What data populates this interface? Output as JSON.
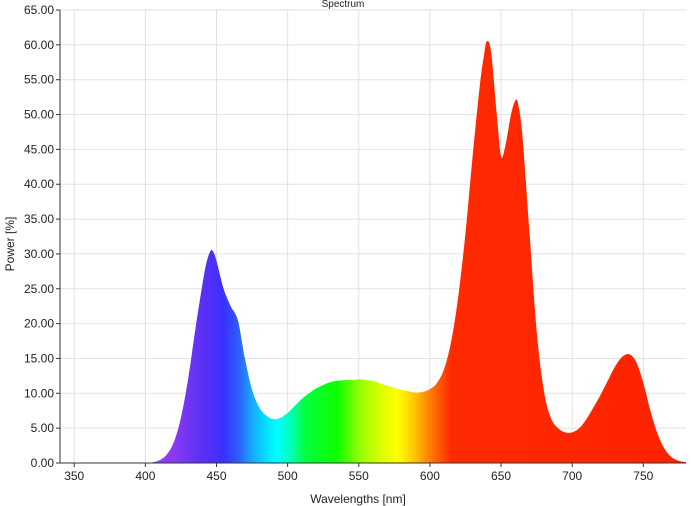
{
  "chart_data": {
    "type": "area",
    "title": "Spectrum",
    "xlabel": "Wavelengths [nm]",
    "ylabel": "Power [%]",
    "xlim": [
      340,
      780
    ],
    "ylim": [
      0,
      65
    ],
    "grid": true,
    "legend": "none",
    "x_ticks": [
      "350",
      "400",
      "450",
      "500",
      "550",
      "600",
      "650",
      "700",
      "750"
    ],
    "x_tick_values": [
      350,
      400,
      450,
      500,
      550,
      600,
      650,
      700,
      750
    ],
    "y_ticks": [
      "0.00",
      "5.00",
      "10.00",
      "15.00",
      "20.00",
      "25.00",
      "30.00",
      "35.00",
      "40.00",
      "45.00",
      "50.00",
      "55.00",
      "60.00",
      "65.00"
    ],
    "y_tick_values": [
      0,
      5,
      10,
      15,
      20,
      25,
      30,
      35,
      40,
      45,
      50,
      55,
      60,
      65
    ],
    "series": [
      {
        "x": [
          350,
          400,
          405,
          410,
          415,
          420,
          425,
          430,
          435,
          440,
          443,
          446,
          448,
          450,
          455,
          460,
          465,
          470,
          475,
          480,
          485,
          490,
          495,
          500,
          505,
          510,
          515,
          520,
          525,
          530,
          535,
          540,
          545,
          550,
          555,
          560,
          565,
          570,
          575,
          580,
          585,
          590,
          595,
          600,
          605,
          610,
          615,
          620,
          625,
          630,
          635,
          638,
          640,
          643,
          647,
          650,
          653,
          657,
          660,
          662,
          665,
          670,
          675,
          680,
          685,
          690,
          695,
          700,
          705,
          710,
          715,
          720,
          725,
          730,
          735,
          740,
          745,
          750,
          755,
          760,
          765,
          770,
          775,
          780
        ],
        "y": [
          0,
          0,
          0.1,
          0.4,
          1.2,
          3.0,
          6.5,
          12.0,
          19.0,
          25.5,
          28.8,
          30.5,
          30.2,
          29.0,
          25.0,
          22.5,
          20.5,
          15.0,
          10.5,
          8.0,
          6.8,
          6.3,
          6.5,
          7.2,
          8.2,
          9.2,
          10.0,
          10.7,
          11.2,
          11.6,
          11.8,
          11.9,
          11.9,
          12.0,
          11.9,
          11.8,
          11.4,
          11.1,
          10.8,
          10.5,
          10.3,
          10.1,
          10.2,
          10.6,
          11.5,
          13.5,
          17.5,
          24.0,
          33.0,
          44.0,
          54.0,
          58.5,
          60.5,
          59.0,
          50.0,
          44.0,
          45.5,
          50.0,
          52.0,
          51.5,
          47.0,
          33.0,
          19.0,
          10.5,
          6.5,
          5.0,
          4.4,
          4.4,
          5.0,
          6.3,
          8.0,
          9.8,
          11.8,
          13.8,
          15.2,
          15.6,
          14.5,
          11.5,
          7.5,
          4.2,
          2.0,
          0.8,
          0.3,
          0.1
        ]
      }
    ]
  },
  "colors": {
    "gradient_stops": [
      {
        "nm": 400,
        "color": "#a33df0"
      },
      {
        "nm": 420,
        "color": "#8a3af2"
      },
      {
        "nm": 440,
        "color": "#5a30f5"
      },
      {
        "nm": 455,
        "color": "#3a30ff"
      },
      {
        "nm": 465,
        "color": "#2e5bff"
      },
      {
        "nm": 475,
        "color": "#1aa8ff"
      },
      {
        "nm": 485,
        "color": "#00e0ff"
      },
      {
        "nm": 493,
        "color": "#00ffff"
      },
      {
        "nm": 503,
        "color": "#00ffb0"
      },
      {
        "nm": 512,
        "color": "#00ff40"
      },
      {
        "nm": 535,
        "color": "#10ff00"
      },
      {
        "nm": 550,
        "color": "#90ff00"
      },
      {
        "nm": 565,
        "color": "#d8ff00"
      },
      {
        "nm": 577,
        "color": "#ffff00"
      },
      {
        "nm": 588,
        "color": "#ffcc00"
      },
      {
        "nm": 598,
        "color": "#ff8a00"
      },
      {
        "nm": 607,
        "color": "#ff5500"
      },
      {
        "nm": 615,
        "color": "#ff2a00"
      },
      {
        "nm": 780,
        "color": "#ff2200"
      }
    ]
  }
}
